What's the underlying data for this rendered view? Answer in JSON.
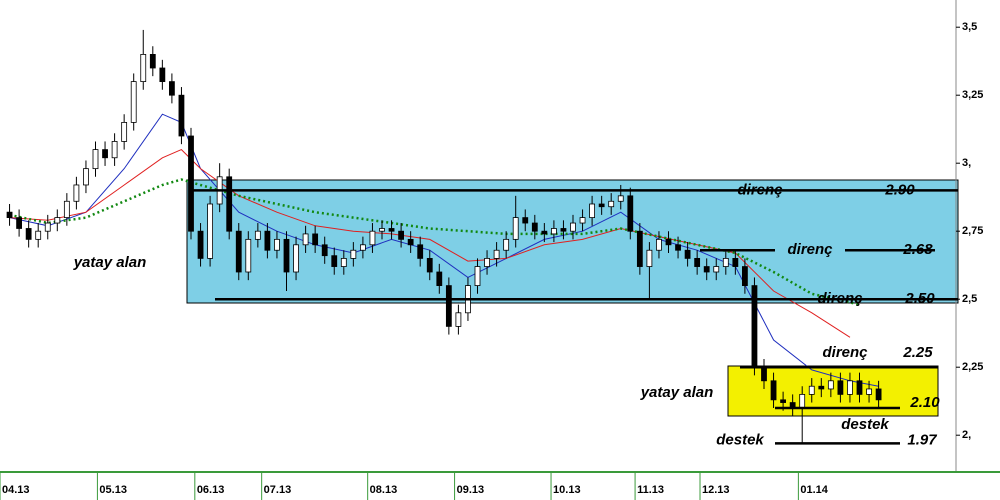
{
  "chart_data": {
    "type": "candlestick",
    "x": [
      0,
      1,
      2,
      3,
      4,
      5,
      6,
      7,
      8,
      9,
      10,
      11,
      12,
      13,
      14,
      15,
      16,
      17,
      18,
      19,
      20,
      21,
      22,
      23,
      24,
      25,
      26,
      27,
      28,
      29,
      30,
      31,
      32,
      33,
      34,
      35,
      36,
      37,
      38,
      39,
      40,
      41,
      42,
      43,
      44,
      45,
      46,
      47,
      48,
      49,
      50,
      51,
      52,
      53,
      54,
      55,
      56,
      57,
      58,
      59,
      60,
      61,
      62,
      63,
      64,
      65,
      66,
      67,
      68,
      69,
      70,
      71,
      72,
      73,
      74,
      75,
      76,
      77,
      78,
      79,
      80,
      81,
      82,
      83,
      84,
      85,
      86,
      87,
      88,
      89,
      90,
      91
    ],
    "open": [
      2.82,
      2.8,
      2.76,
      2.72,
      2.75,
      2.78,
      2.8,
      2.86,
      2.92,
      2.98,
      3.05,
      3.02,
      3.08,
      3.15,
      3.3,
      3.4,
      3.35,
      3.3,
      3.25,
      3.1,
      2.75,
      2.65,
      2.85,
      2.95,
      2.75,
      2.6,
      2.72,
      2.75,
      2.68,
      2.72,
      2.6,
      2.7,
      2.74,
      2.7,
      2.66,
      2.62,
      2.65,
      2.68,
      2.7,
      2.75,
      2.76,
      2.75,
      2.72,
      2.7,
      2.65,
      2.6,
      2.55,
      2.4,
      2.45,
      2.55,
      2.62,
      2.65,
      2.68,
      2.72,
      2.8,
      2.78,
      2.75,
      2.74,
      2.76,
      2.75,
      2.78,
      2.8,
      2.85,
      2.84,
      2.86,
      2.88,
      2.75,
      2.62,
      2.68,
      2.72,
      2.7,
      2.68,
      2.65,
      2.62,
      2.6,
      2.62,
      2.65,
      2.62,
      2.55,
      2.25,
      2.2,
      2.13,
      2.12,
      2.1,
      2.15,
      2.18,
      2.17,
      2.2,
      2.15,
      2.2,
      2.15,
      2.17
    ],
    "high": [
      2.85,
      2.83,
      2.79,
      2.78,
      2.81,
      2.83,
      2.89,
      2.95,
      3.01,
      3.08,
      3.08,
      3.11,
      3.18,
      3.33,
      3.49,
      3.43,
      3.38,
      3.33,
      3.28,
      3.13,
      2.78,
      2.88,
      3.0,
      2.98,
      2.78,
      2.75,
      2.78,
      2.78,
      2.75,
      2.75,
      2.73,
      2.77,
      2.77,
      2.73,
      2.69,
      2.68,
      2.71,
      2.73,
      2.78,
      2.79,
      2.79,
      2.78,
      2.75,
      2.73,
      2.68,
      2.63,
      2.58,
      2.48,
      2.58,
      2.65,
      2.68,
      2.71,
      2.75,
      2.88,
      2.83,
      2.81,
      2.78,
      2.79,
      2.79,
      2.81,
      2.83,
      2.88,
      2.88,
      2.89,
      2.92,
      2.91,
      2.78,
      2.71,
      2.75,
      2.75,
      2.73,
      2.71,
      2.68,
      2.65,
      2.65,
      2.68,
      2.68,
      2.65,
      2.58,
      2.28,
      2.23,
      2.16,
      2.15,
      2.18,
      2.21,
      2.21,
      2.23,
      2.23,
      2.23,
      2.23,
      2.2,
      2.2
    ],
    "low": [
      2.77,
      2.73,
      2.69,
      2.69,
      2.72,
      2.75,
      2.77,
      2.83,
      2.89,
      2.95,
      2.99,
      2.99,
      3.05,
      3.12,
      3.27,
      3.32,
      3.27,
      3.22,
      3.07,
      2.72,
      2.62,
      2.62,
      2.82,
      2.72,
      2.57,
      2.57,
      2.69,
      2.65,
      2.65,
      2.53,
      2.57,
      2.67,
      2.67,
      2.63,
      2.59,
      2.59,
      2.62,
      2.65,
      2.67,
      2.72,
      2.72,
      2.69,
      2.67,
      2.62,
      2.57,
      2.52,
      2.37,
      2.37,
      2.42,
      2.52,
      2.59,
      2.62,
      2.65,
      2.69,
      2.75,
      2.72,
      2.71,
      2.71,
      2.72,
      2.72,
      2.75,
      2.77,
      2.81,
      2.81,
      2.83,
      2.72,
      2.59,
      2.5,
      2.65,
      2.67,
      2.65,
      2.62,
      2.59,
      2.57,
      2.57,
      2.59,
      2.59,
      2.52,
      2.22,
      2.17,
      2.1,
      2.09,
      2.07,
      1.97,
      2.12,
      2.14,
      2.14,
      2.12,
      2.12,
      2.12,
      2.12,
      2.1
    ],
    "close": [
      2.8,
      2.76,
      2.72,
      2.75,
      2.78,
      2.8,
      2.86,
      2.92,
      2.98,
      3.05,
      3.02,
      3.08,
      3.15,
      3.3,
      3.4,
      3.35,
      3.3,
      3.25,
      3.1,
      2.75,
      2.65,
      2.85,
      2.95,
      2.75,
      2.6,
      2.72,
      2.75,
      2.68,
      2.72,
      2.6,
      2.7,
      2.74,
      2.7,
      2.66,
      2.62,
      2.65,
      2.68,
      2.7,
      2.75,
      2.76,
      2.75,
      2.72,
      2.7,
      2.65,
      2.6,
      2.55,
      2.4,
      2.45,
      2.55,
      2.62,
      2.65,
      2.68,
      2.72,
      2.8,
      2.78,
      2.75,
      2.74,
      2.76,
      2.75,
      2.78,
      2.8,
      2.85,
      2.84,
      2.86,
      2.88,
      2.75,
      2.62,
      2.68,
      2.72,
      2.7,
      2.68,
      2.65,
      2.62,
      2.6,
      2.62,
      2.65,
      2.62,
      2.55,
      2.25,
      2.2,
      2.13,
      2.12,
      2.1,
      2.15,
      2.18,
      2.17,
      2.2,
      2.15,
      2.2,
      2.15,
      2.17,
      2.13
    ],
    "lines": [
      {
        "color": "#1f2fbf",
        "x": [
          0,
          4,
          8,
          12,
          16,
          18,
          20,
          24,
          28,
          32,
          36,
          40,
          44,
          48,
          52,
          56,
          60,
          64,
          68,
          72,
          76,
          80,
          84,
          88,
          91
        ],
        "values": [
          2.8,
          2.77,
          2.82,
          2.98,
          3.18,
          3.15,
          2.98,
          2.82,
          2.75,
          2.7,
          2.67,
          2.72,
          2.68,
          2.58,
          2.65,
          2.72,
          2.75,
          2.82,
          2.72,
          2.68,
          2.62,
          2.35,
          2.24,
          2.2,
          2.18
        ]
      },
      {
        "color": "#e02020",
        "x": [
          0,
          4,
          8,
          12,
          16,
          18,
          20,
          24,
          28,
          32,
          36,
          40,
          44,
          48,
          52,
          56,
          60,
          64,
          68,
          72,
          76,
          80,
          84,
          88
        ],
        "values": [
          2.8,
          2.79,
          2.82,
          2.92,
          3.02,
          3.05,
          2.98,
          2.88,
          2.82,
          2.77,
          2.75,
          2.74,
          2.72,
          2.64,
          2.65,
          2.7,
          2.72,
          2.76,
          2.73,
          2.7,
          2.67,
          2.53,
          2.45,
          2.36
        ]
      },
      {
        "color": "#118811",
        "dashed": true,
        "x": [
          0,
          4,
          8,
          12,
          16,
          18,
          20,
          24,
          28,
          32,
          36,
          40,
          44,
          48,
          52,
          56,
          60,
          64,
          68,
          72,
          76,
          80,
          84,
          89
        ],
        "values": [
          2.81,
          2.78,
          2.8,
          2.86,
          2.92,
          2.94,
          2.92,
          2.88,
          2.85,
          2.82,
          2.8,
          2.78,
          2.76,
          2.75,
          2.74,
          2.74,
          2.74,
          2.76,
          2.73,
          2.7,
          2.67,
          2.6,
          2.52,
          2.48
        ]
      }
    ],
    "xlim": [
      -1,
      99
    ],
    "xticks": [
      {
        "value": -1,
        "label": "04.13"
      },
      {
        "value": 9.2,
        "label": "05.13"
      },
      {
        "value": 19.4,
        "label": "06.13"
      },
      {
        "value": 26.4,
        "label": "07.13"
      },
      {
        "value": 37.5,
        "label": "08.13"
      },
      {
        "value": 46.6,
        "label": "09.13"
      },
      {
        "value": 56.7,
        "label": "10.13"
      },
      {
        "value": 65.5,
        "label": "11.13"
      },
      {
        "value": 72.3,
        "label": "12.13"
      },
      {
        "value": 82.6,
        "label": "01.14"
      }
    ],
    "ylim": [
      1.85,
      3.6
    ],
    "yticks": [
      {
        "value": 3.5,
        "label": "3,5"
      },
      {
        "value": 3.25,
        "label": "3,25"
      },
      {
        "value": 3,
        "label": "3,"
      },
      {
        "value": 2.75,
        "label": "2,75"
      },
      {
        "value": 2.5,
        "label": "2,5"
      },
      {
        "value": 2.25,
        "label": "2,25"
      },
      {
        "value": 2,
        "label": "2,"
      }
    ],
    "annotations": [
      {
        "text": "direnç",
        "level": {
          "value": 2.9,
          "label": "2.90"
        }
      },
      {
        "text": "direnç",
        "level": {
          "value": 2.68,
          "label": "2.68"
        }
      },
      {
        "text": "direnç",
        "level": {
          "value": 2.5,
          "label": "2.50"
        }
      },
      {
        "text": "direnç",
        "level": 2.25
      },
      {
        "text": "destek",
        "level": {
          "value": 2.1,
          "label": "2.10"
        }
      },
      {
        "text": "destek",
        "level": 1.97
      }
    ],
    "zone_labels": [
      "yatay alan",
      "yatay alan"
    ]
  }
}
